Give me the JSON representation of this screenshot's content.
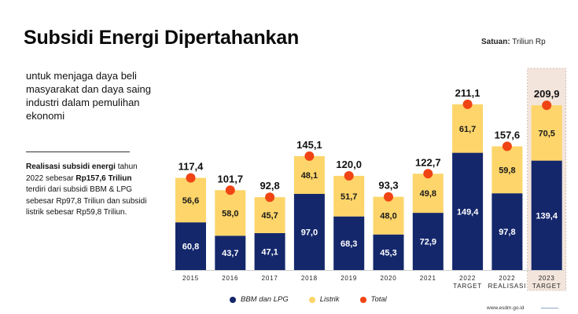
{
  "header": {
    "title": "Subsidi Energi Dipertahankan",
    "unit_label": "Satuan:",
    "unit_value": "Triliun Rp"
  },
  "subtitle": "untuk menjaga daya beli masyarakat dan daya saing industri dalam pemulihan ekonomi",
  "note": {
    "bold_1": "Realisasi subsidi energi",
    "text_1": " tahun 2022 sebesar ",
    "bold_2": "Rp157,6 Triliun",
    "text_2": " terdiri dari subsidi BBM & LPG sebesar Rp97,8 Triliun dan subsidi listrik sebesar Rp59,8 Triliun."
  },
  "footer": "www.esdm.go.id",
  "colors": {
    "bbm": "#14276b",
    "listrik": "#fdd56a",
    "total": "#f04414",
    "highlight_bg": "#f3e5dc"
  },
  "chart_data": {
    "type": "bar",
    "stacked": true,
    "categories": [
      "2015",
      "2016",
      "2017",
      "2018",
      "2019",
      "2020",
      "2021",
      "2022\nTARGET",
      "2022\nREALISASI",
      "2023\nTARGET"
    ],
    "series": [
      {
        "name": "BBM dan LPG",
        "values": [
          60.8,
          43.7,
          47.1,
          97.0,
          68.3,
          45.3,
          72.9,
          149.4,
          97.8,
          139.4
        ],
        "labels": [
          "60,8",
          "43,7",
          "47,1",
          "97,0",
          "68,3",
          "45,3",
          "72,9",
          "149,4",
          "97,8",
          "139,4"
        ]
      },
      {
        "name": "Listrik",
        "values": [
          56.6,
          58.0,
          45.7,
          48.1,
          51.7,
          48.0,
          49.8,
          61.7,
          59.8,
          70.5
        ],
        "labels": [
          "56,6",
          "58,0",
          "45,7",
          "48,1",
          "51,7",
          "48,0",
          "49,8",
          "61,7",
          "59,8",
          "70,5"
        ]
      },
      {
        "name": "Total",
        "values": [
          117.4,
          101.7,
          92.8,
          145.1,
          120.0,
          93.3,
          122.7,
          211.1,
          157.6,
          209.9
        ],
        "labels": [
          "117,4",
          "101,7",
          "92,8",
          "145,1",
          "120,0",
          "93,3",
          "122,7",
          "211,1",
          "157,6",
          "209,9"
        ]
      }
    ],
    "highlight_category": "2023\nTARGET",
    "legend": [
      "BBM dan LPG",
      "Listrik",
      "Total"
    ],
    "legend_position": "bottom",
    "grid": false,
    "ylim": [
      0,
      230
    ]
  }
}
